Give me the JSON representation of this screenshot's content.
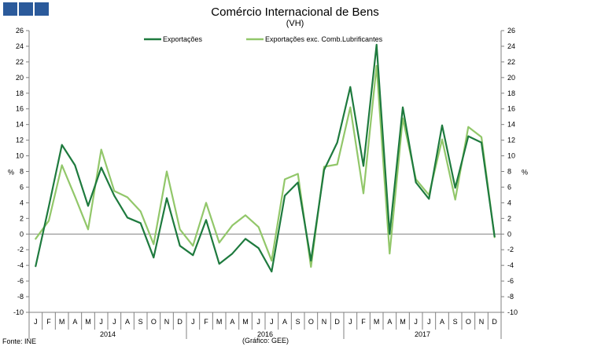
{
  "header": {
    "title": "Comércio Internacional de Bens",
    "subtitle": "(VH)"
  },
  "footer": {
    "source": "Fonte: INE",
    "credit": "(Gráfico: GEE)"
  },
  "colors": {
    "logo": "#2b5a9b",
    "exportacoes": "#1e7a3e",
    "exportacoes_exc": "#92c76a",
    "axis": "#808080"
  },
  "chart_data": {
    "type": "line",
    "title": "Comércio Internacional de Bens",
    "subtitle": "(VH)",
    "ylabel_left": "%",
    "ylabel_right": "%",
    "ylim": [
      -10,
      26
    ],
    "yticks": [
      -10,
      -8,
      -6,
      -4,
      -2,
      0,
      2,
      4,
      6,
      8,
      10,
      12,
      14,
      16,
      18,
      20,
      22,
      24,
      26
    ],
    "grid": false,
    "legend_position": "top-center",
    "categories": [
      "J",
      "F",
      "M",
      "A",
      "M",
      "J",
      "J",
      "A",
      "S",
      "O",
      "N",
      "D",
      "J",
      "F",
      "M",
      "A",
      "M",
      "J",
      "J",
      "A",
      "S",
      "O",
      "N",
      "D",
      "J",
      "F",
      "M",
      "A",
      "M",
      "J",
      "J",
      "A",
      "S",
      "O",
      "N",
      "D"
    ],
    "years": [
      {
        "label": "2014",
        "start": 0,
        "end": 11
      },
      {
        "label": "2016",
        "start": 12,
        "end": 23
      },
      {
        "label": "2017",
        "start": 24,
        "end": 35
      }
    ],
    "series": [
      {
        "name": "Exportações",
        "color": "#1e7a3e",
        "values": [
          -4.1,
          3.5,
          11.4,
          8.8,
          3.6,
          8.5,
          4.9,
          2.1,
          1.4,
          -3.0,
          4.6,
          -1.5,
          -2.7,
          1.8,
          -3.8,
          -2.5,
          -0.6,
          -1.8,
          -4.8,
          4.9,
          6.6,
          -3.4,
          8.2,
          11.7,
          18.8,
          8.7,
          24.2,
          0.0,
          16.2,
          6.6,
          4.5,
          13.9,
          5.9,
          12.5,
          11.7,
          -0.3
        ]
      },
      {
        "name": "Exportações exc. Comb.Lubrificantes",
        "color": "#92c76a",
        "values": [
          -0.6,
          1.7,
          8.8,
          4.8,
          0.6,
          10.8,
          5.5,
          4.7,
          2.9,
          -1.3,
          8.0,
          0.6,
          -1.5,
          4.0,
          -1.1,
          1.1,
          2.4,
          0.9,
          -3.4,
          7.0,
          7.7,
          -4.2,
          8.6,
          8.9,
          16.2,
          5.2,
          21.5,
          -2.5,
          14.8,
          7.0,
          5.0,
          12.1,
          4.4,
          13.7,
          12.4,
          -0.4
        ]
      }
    ]
  }
}
